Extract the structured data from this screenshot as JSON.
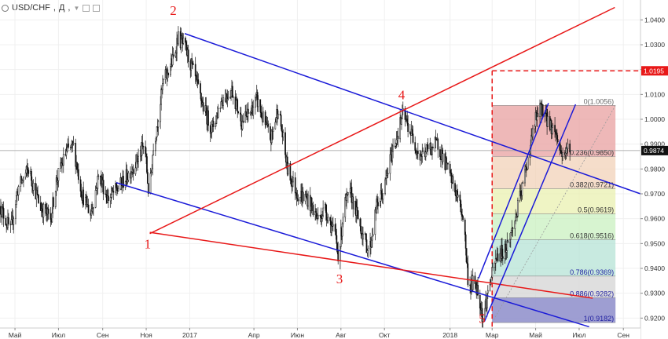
{
  "header": {
    "symbol": "USD/CHF",
    "timeframe": "Д",
    "icons": [
      "circle-icon",
      "chevron-down-icon",
      "hide-icon",
      "settings-icon"
    ]
  },
  "colors": {
    "candles": "#111111",
    "blue_lines": "#1a1ad8",
    "red_lines": "#e81818",
    "fib_0": "#e8a0a0",
    "fib_0236": "#f2d2b8",
    "fib_0382": "#eaf0b0",
    "fib_05": "#c9f0c0",
    "fib_0618": "#b5e3d6",
    "fib_0786": "#b8d4ee",
    "fib_0886": "#d4d4d4",
    "fib_1": "#9898d0"
  },
  "chart_data": {
    "type": "candlestick",
    "instrument": "USD/CHF",
    "timeframe": "Д",
    "ylim": [
      0.916,
      1.048
    ],
    "y_ticks": [
      0.92,
      0.93,
      0.94,
      0.95,
      0.96,
      0.97,
      0.98,
      0.99,
      1.0,
      1.01,
      1.02,
      1.03,
      1.04
    ],
    "y_tick_labels": [
      "0.9200",
      "0.9300",
      "0.9400",
      "0.9500",
      "0.9600",
      "0.9700",
      "0.9800",
      "0.9900",
      "1.0000",
      "1.0100",
      "1.0200",
      "1.0300",
      "1.0400"
    ],
    "x_range": [
      "2016-04-10",
      "2018-09-25"
    ],
    "x_ticks": [
      {
        "date": "2016-05-01",
        "label": "Май"
      },
      {
        "date": "2016-07-01",
        "label": "Июл"
      },
      {
        "date": "2016-09-01",
        "label": "Сен"
      },
      {
        "date": "2016-11-01",
        "label": "Ноя"
      },
      {
        "date": "2017-01-01",
        "label": "2017"
      },
      {
        "date": "2017-04-01",
        "label": "Апр"
      },
      {
        "date": "2017-06-01",
        "label": "Июн"
      },
      {
        "date": "2017-08-01",
        "label": "Авг"
      },
      {
        "date": "2017-10-01",
        "label": "Окт"
      },
      {
        "date": "2018-01-01",
        "label": "2018"
      },
      {
        "date": "2018-03-01",
        "label": "Мар"
      },
      {
        "date": "2018-05-01",
        "label": "Май"
      },
      {
        "date": "2018-07-01",
        "label": "Июл"
      },
      {
        "date": "2018-09-01",
        "label": "Сен"
      }
    ],
    "price_path": [
      [
        "2016-04-10",
        0.965
      ],
      [
        "2016-04-25",
        0.955
      ],
      [
        "2016-05-05",
        0.972
      ],
      [
        "2016-05-20",
        0.98
      ],
      [
        "2016-06-05",
        0.965
      ],
      [
        "2016-06-20",
        0.96
      ],
      [
        "2016-06-28",
        0.975
      ],
      [
        "2016-07-12",
        0.987
      ],
      [
        "2016-07-22",
        0.989
      ],
      [
        "2016-08-03",
        0.97
      ],
      [
        "2016-08-15",
        0.962
      ],
      [
        "2016-08-27",
        0.978
      ],
      [
        "2016-09-08",
        0.968
      ],
      [
        "2016-09-22",
        0.972
      ],
      [
        "2016-10-05",
        0.977
      ],
      [
        "2016-10-20",
        0.984
      ],
      [
        "2016-10-30",
        0.99
      ],
      [
        "2016-11-05",
        0.968
      ],
      [
        "2016-11-10",
        0.986
      ],
      [
        "2016-11-25",
        1.015
      ],
      [
        "2016-12-10",
        1.025
      ],
      [
        "2016-12-15",
        1.033
      ],
      [
        "2016-12-25",
        1.029
      ],
      [
        "2017-01-05",
        1.02
      ],
      [
        "2017-01-20",
        1.005
      ],
      [
        "2017-02-01",
        0.996
      ],
      [
        "2017-02-15",
        1.008
      ],
      [
        "2017-03-01",
        1.012
      ],
      [
        "2017-03-15",
        0.999
      ],
      [
        "2017-03-25",
        1.002
      ],
      [
        "2017-04-05",
        1.008
      ],
      [
        "2017-04-15",
        0.999
      ],
      [
        "2017-04-25",
        0.992
      ],
      [
        "2017-05-05",
        1.005
      ],
      [
        "2017-05-18",
        0.98
      ],
      [
        "2017-06-01",
        0.97
      ],
      [
        "2017-06-15",
        0.968
      ],
      [
        "2017-06-30",
        0.96
      ],
      [
        "2017-07-10",
        0.964
      ],
      [
        "2017-07-25",
        0.952
      ],
      [
        "2017-07-29",
        0.944
      ],
      [
        "2017-08-05",
        0.965
      ],
      [
        "2017-08-15",
        0.97
      ],
      [
        "2017-08-25",
        0.96
      ],
      [
        "2017-09-05",
        0.95
      ],
      [
        "2017-09-10",
        0.947
      ],
      [
        "2017-09-20",
        0.965
      ],
      [
        "2017-10-01",
        0.972
      ],
      [
        "2017-10-10",
        0.985
      ],
      [
        "2017-10-20",
        0.995
      ],
      [
        "2017-10-27",
        1.002
      ],
      [
        "2017-11-05",
        0.996
      ],
      [
        "2017-11-20",
        0.985
      ],
      [
        "2017-12-01",
        0.988
      ],
      [
        "2017-12-15",
        0.99
      ],
      [
        "2017-12-28",
        0.98
      ],
      [
        "2018-01-10",
        0.97
      ],
      [
        "2018-01-20",
        0.96
      ],
      [
        "2018-01-27",
        0.932
      ],
      [
        "2018-02-05",
        0.935
      ],
      [
        "2018-02-12",
        0.927
      ],
      [
        "2018-02-16",
        0.92
      ],
      [
        "2018-02-25",
        0.933
      ],
      [
        "2018-03-08",
        0.945
      ],
      [
        "2018-03-20",
        0.948
      ],
      [
        "2018-04-01",
        0.958
      ],
      [
        "2018-04-12",
        0.972
      ],
      [
        "2018-04-24",
        0.99
      ],
      [
        "2018-05-01",
        1.0
      ],
      [
        "2018-05-10",
        1.005
      ],
      [
        "2018-05-20",
        0.998
      ],
      [
        "2018-05-29",
        0.995
      ],
      [
        "2018-06-06",
        0.986
      ],
      [
        "2018-06-13",
        0.987
      ],
      [
        "2018-06-18",
        0.99
      ]
    ],
    "current_price": {
      "value": 0.9874,
      "label": "0.9874"
    },
    "target_level": {
      "value": 1.0195,
      "label": "1.0195",
      "from": "2018-03-01"
    },
    "fibonacci": {
      "from": "2018-03-01",
      "to": "2018-06-18",
      "levels": [
        {
          "ratio": 0,
          "price": 1.0056,
          "label": "0(1.0056)"
        },
        {
          "ratio": 0.236,
          "price": 0.985,
          "label": "0.236(0.9850)"
        },
        {
          "ratio": 0.382,
          "price": 0.9721,
          "label": "0.382(0.9721)"
        },
        {
          "ratio": 0.5,
          "price": 0.9619,
          "label": "0.5(0.9619)"
        },
        {
          "ratio": 0.618,
          "price": 0.9516,
          "label": "0.618(0.9516)"
        },
        {
          "ratio": 0.786,
          "price": 0.9369,
          "label": "0.786(0.9369)"
        },
        {
          "ratio": 0.886,
          "price": 0.9282,
          "label": "0.886(0.9282)"
        },
        {
          "ratio": 1,
          "price": 0.9182,
          "label": "1(0.9182)"
        }
      ]
    },
    "trendlines": [
      {
        "color": "blue",
        "from": [
          "2016-12-25",
          1.0345
        ],
        "to": [
          "2018-09-25",
          0.97
        ]
      },
      {
        "color": "blue",
        "from": [
          "2016-09-20",
          0.9745
        ],
        "to": [
          "2018-07-15",
          0.9165
        ]
      },
      {
        "color": "red",
        "from": [
          "2016-11-06",
          0.954
        ],
        "to": [
          "2018-08-20",
          1.045
        ]
      },
      {
        "color": "red",
        "from": [
          "2016-11-06",
          0.9545
        ],
        "to": [
          "2018-07-20",
          0.928
        ]
      },
      {
        "color": "blue",
        "from": [
          "2018-02-10",
          0.936
        ],
        "to": [
          "2018-05-19",
          1.0065
        ]
      },
      {
        "color": "blue",
        "from": [
          "2018-02-18",
          0.9185
        ],
        "to": [
          "2018-06-26",
          1.006
        ]
      }
    ],
    "wave_labels": [
      {
        "label": "1",
        "date": "2016-11-03",
        "price": 0.948
      },
      {
        "label": "2",
        "date": "2016-12-09",
        "price": 1.042
      },
      {
        "label": "3",
        "date": "2017-07-30",
        "price": 0.934
      },
      {
        "label": "4",
        "date": "2017-10-25",
        "price": 1.008
      },
      {
        "label": "5",
        "date": "2018-02-15",
        "price": 0.918
      }
    ]
  }
}
